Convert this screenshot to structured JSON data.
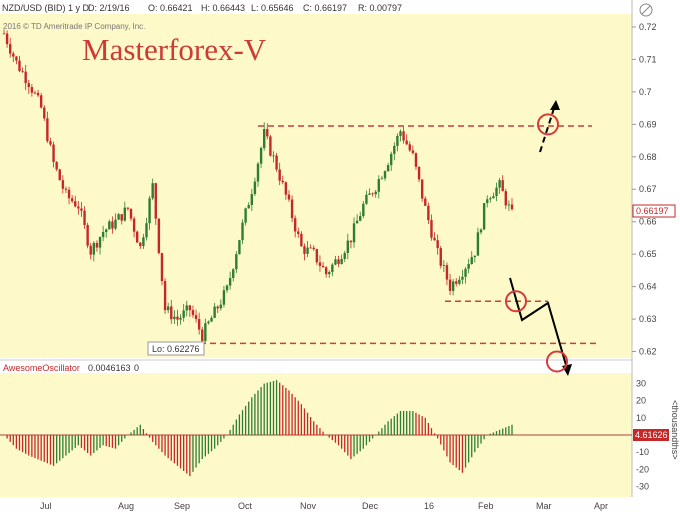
{
  "header": {
    "symbol": "NZD/USD (BID) 1 y D",
    "date": "D: 2/19/16",
    "open": "O: 0.66421",
    "high": "H: 0.66443",
    "low": "L: 0.65646",
    "close": "C: 0.66197",
    "range": "R: 0.00797",
    "copyright": "2016 © TD Ameritrade IP Company, Inc."
  },
  "watermark": "Masterforex-V",
  "price_axis": {
    "ticks": [
      "0.72",
      "0.71",
      "0.7",
      "0.69",
      "0.68",
      "0.67",
      "0.66",
      "0.65",
      "0.64",
      "0.63",
      "0.62"
    ]
  },
  "last_price": "0.66197",
  "low_label": "Lo: 0.62276",
  "indicator": {
    "name": "AwesomeOscillator",
    "value": "0.0046163",
    "extra": "0",
    "axis_ticks": [
      "30",
      "20",
      "10",
      "0",
      "-10",
      "-20",
      "-30"
    ],
    "unit": "<thousandths>",
    "last_value": "4.61626"
  },
  "x_axis": {
    "labels": [
      "Jul",
      "Aug",
      "Sep",
      "Oct",
      "Nov",
      "Dec",
      "16",
      "Feb",
      "Mar",
      "Apr"
    ]
  },
  "colors": {
    "bull": "#2e7d32",
    "bear": "#c62828",
    "level": "#c9413e",
    "panel_bg": "#fdf9c9"
  },
  "chart_data": [
    {
      "type": "candlestick",
      "title": "NZD/USD (BID) 1 y D",
      "ylim": [
        0.618,
        0.724
      ],
      "x": [
        "Jul",
        "Aug",
        "Sep",
        "Oct",
        "Nov",
        "Dec",
        "16",
        "Feb",
        "Mar",
        "Apr"
      ],
      "levels": [
        0.6225,
        0.6355,
        0.6895
      ],
      "anchors": [
        [
          0.718,
          0.709,
          0.703,
          0.695,
          0.678,
          0.668,
          0.665,
          0.651,
          0.657,
          0.66,
          0.664,
          0.652,
          0.671,
          0.633,
          0.63,
          0.633,
          0.625,
          0.632,
          0.639,
          0.655,
          0.67,
          0.687,
          0.677,
          0.665,
          0.652,
          0.65,
          0.644,
          0.649,
          0.655,
          0.665,
          0.671,
          0.679,
          0.688,
          0.68,
          0.664,
          0.65,
          0.64,
          0.645,
          0.651,
          0.668,
          0.671,
          0.662
        ]
      ]
    },
    {
      "type": "bar",
      "title": "AwesomeOscillator",
      "ylim": [
        -35,
        35
      ],
      "anchors": [
        [
          0,
          -8,
          -12,
          -15,
          -18,
          -12,
          -6,
          -12,
          -6,
          -8,
          0,
          6,
          -4,
          -12,
          -18,
          -24,
          -14,
          -8,
          0,
          12,
          22,
          30,
          32,
          26,
          18,
          8,
          0,
          -6,
          -14,
          -8,
          0,
          8,
          14,
          14,
          10,
          -2,
          -16,
          -22,
          -10,
          0,
          3,
          6
        ]
      ]
    }
  ],
  "annotations": {
    "target_up": "0.69",
    "target_down": "0.62"
  }
}
